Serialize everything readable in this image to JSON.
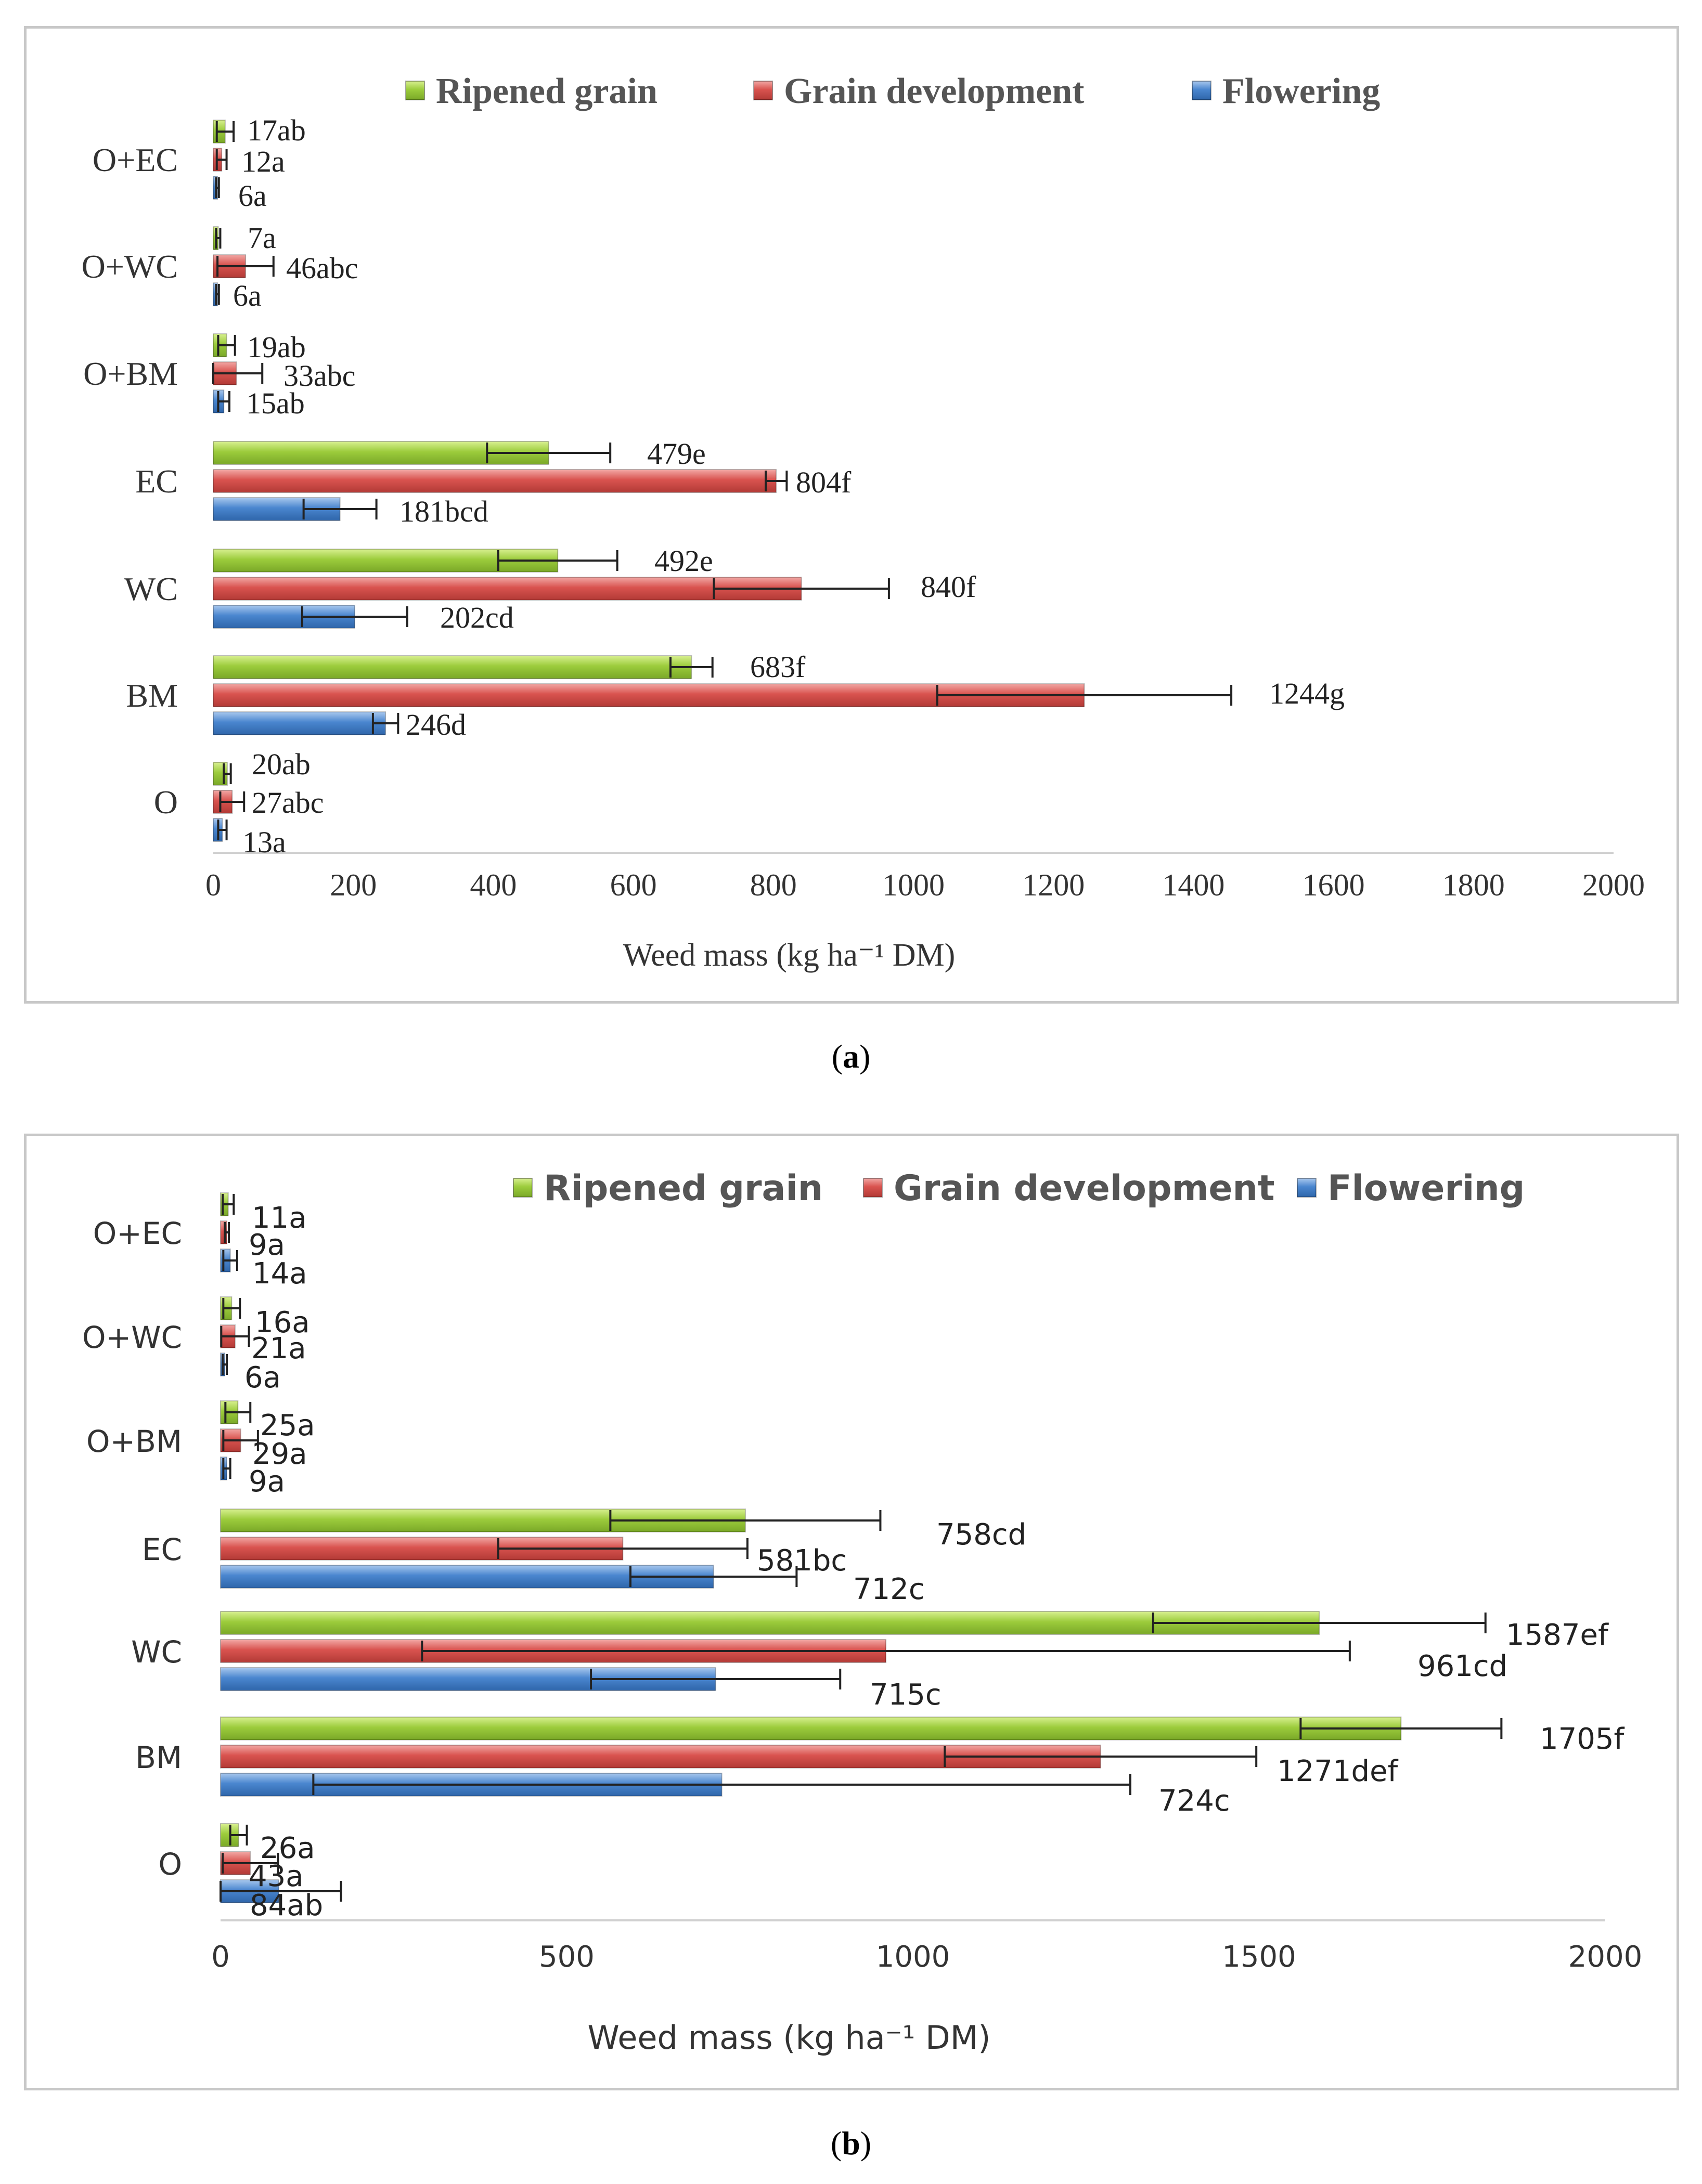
{
  "colors": {
    "ripened": "#9ccc3c",
    "development": "#d9534f",
    "flowering": "#4a86cf",
    "axis": "#d0d0d0",
    "text": "#222222"
  },
  "chart_data": [
    {
      "id": "a",
      "type": "bar",
      "orientation": "horizontal",
      "caption": "(a)",
      "caption_letter": "a",
      "categories": [
        "O",
        "BM",
        "WC",
        "EC",
        "O+BM",
        "O+WC",
        "O+EC"
      ],
      "series": [
        {
          "name": "Flowering",
          "values": [
            13,
            246,
            202,
            181,
            15,
            6,
            6
          ],
          "errors": [
            6,
            18,
            75,
            52,
            8,
            2,
            2
          ],
          "labels": [
            "13a",
            "246d",
            "202cd",
            "181bcd",
            "15ab",
            "6a",
            "6a"
          ]
        },
        {
          "name": "Grain development",
          "values": [
            27,
            1244,
            840,
            804,
            33,
            46,
            12
          ],
          "errors": [
            17,
            210,
            125,
            15,
            37,
            40,
            7
          ],
          "labels": [
            "27abc",
            "1244g",
            "840f",
            "804f",
            "33abc",
            "46abc",
            "12a"
          ]
        },
        {
          "name": "Ripened grain",
          "values": [
            20,
            683,
            492,
            479,
            19,
            7,
            17
          ],
          "errors": [
            5,
            30,
            85,
            88,
            12,
            3,
            12
          ],
          "labels": [
            "20ab",
            "683f",
            "492e",
            "479e",
            "19ab",
            "7a",
            "17ab"
          ]
        }
      ],
      "legend": [
        "Ripened grain",
        "Grain development",
        "Flowering"
      ],
      "legend_position": "top",
      "xlabel": "Weed mass (kg ha⁻¹ DM)",
      "xlim": [
        0,
        2000
      ],
      "xticks": [
        0,
        200,
        400,
        600,
        800,
        1000,
        1200,
        1400,
        1600,
        1800,
        2000
      ]
    },
    {
      "id": "b",
      "type": "bar",
      "orientation": "horizontal",
      "caption": "(b)",
      "caption_letter": "b",
      "categories": [
        "O",
        "BM",
        "WC",
        "EC",
        "O+BM",
        "O+WC",
        "O+EC"
      ],
      "series": [
        {
          "name": "Flowering",
          "values": [
            84,
            724,
            715,
            712,
            9,
            6,
            14
          ],
          "errors": [
            90,
            590,
            180,
            120,
            5,
            3,
            10
          ],
          "labels": [
            "84ab",
            "724c",
            "715c",
            "712c",
            "9a",
            "6a",
            "14a"
          ]
        },
        {
          "name": "Grain development",
          "values": [
            43,
            1271,
            961,
            581,
            29,
            21,
            9
          ],
          "errors": [
            40,
            225,
            670,
            180,
            25,
            20,
            3
          ],
          "labels": [
            "43a",
            "1271def",
            "961cd",
            "581bc",
            "29a",
            "21a",
            "9a"
          ]
        },
        {
          "name": "Ripened grain",
          "values": [
            26,
            1705,
            1587,
            758,
            25,
            16,
            11
          ],
          "errors": [
            12,
            145,
            240,
            195,
            18,
            12,
            8
          ],
          "labels": [
            "26a",
            "1705f",
            "1587ef",
            "758cd",
            "25a",
            "16a",
            "11a"
          ]
        }
      ],
      "legend": [
        "Ripened grain",
        "Grain development",
        "Flowering"
      ],
      "legend_position": "top-right",
      "xlabel": "Weed mass (kg ha⁻¹ DM)",
      "xlim": [
        0,
        2000
      ],
      "xticks": [
        0,
        500,
        1000,
        1500,
        2000
      ]
    }
  ]
}
